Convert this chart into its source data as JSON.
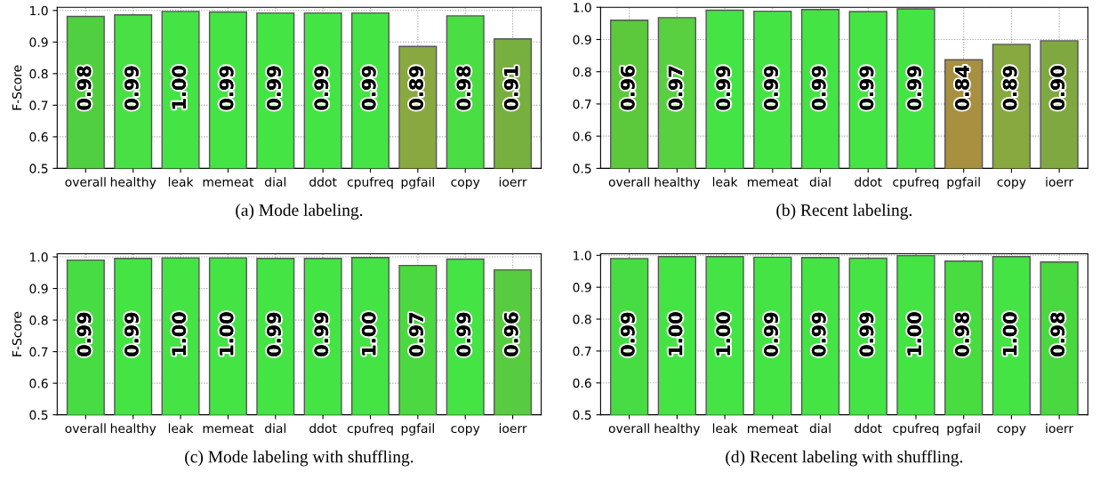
{
  "chart_data": [
    {
      "type": "bar",
      "ylabel": "F-Score",
      "annotations": [
        "(a) Mode labeling."
      ],
      "categories": [
        "overall",
        "healthy",
        "leak",
        "memeat",
        "dial",
        "ddot",
        "cpufreq",
        "pgfail",
        "copy",
        "ioerr"
      ],
      "values": [
        0.981,
        0.986,
        0.997,
        0.995,
        0.992,
        0.992,
        0.992,
        0.886,
        0.983,
        0.91
      ],
      "value_labels": [
        "0.98",
        "0.99",
        "1.00",
        "0.99",
        "0.99",
        "0.99",
        "0.99",
        "0.89",
        "0.98",
        "0.91"
      ],
      "colors": [
        "#50d040",
        "#48e044",
        "#44e444",
        "#44e444",
        "#44e444",
        "#44e444",
        "#44e444",
        "#8aa840",
        "#4ade44",
        "#78b040"
      ],
      "ylim": [
        0.5,
        1.01
      ],
      "yticks": [
        {
          "value": 0.5,
          "label": "0.5"
        },
        {
          "value": 0.6,
          "label": "0.6"
        },
        {
          "value": 0.7,
          "label": "0.7"
        },
        {
          "value": 0.8,
          "label": "0.8"
        },
        {
          "value": 0.9,
          "label": "0.9"
        },
        {
          "value": 1.0,
          "label": "1.0"
        }
      ],
      "grid": true
    },
    {
      "type": "bar",
      "annotations": [
        "(b) Recent labeling."
      ],
      "categories": [
        "overall",
        "healthy",
        "leak",
        "memeat",
        "dial",
        "ddot",
        "cpufreq",
        "pgfail",
        "copy",
        "ioerr"
      ],
      "values": [
        0.96,
        0.968,
        0.991,
        0.988,
        0.993,
        0.987,
        0.995,
        0.837,
        0.885,
        0.896
      ],
      "value_labels": [
        "0.96",
        "0.97",
        "0.99",
        "0.99",
        "0.99",
        "0.99",
        "0.99",
        "0.84",
        "0.89",
        "0.90"
      ],
      "colors": [
        "#5cc83c",
        "#58d040",
        "#44e444",
        "#44e444",
        "#44e444",
        "#44e444",
        "#44e444",
        "#a89040",
        "#88a840",
        "#80a840"
      ],
      "ylim": [
        0.5,
        1.0
      ],
      "yticks": [
        {
          "value": 0.5,
          "label": "0.5"
        },
        {
          "value": 0.6,
          "label": "0.6"
        },
        {
          "value": 0.7,
          "label": "0.7"
        },
        {
          "value": 0.8,
          "label": "0.8"
        },
        {
          "value": 0.9,
          "label": "0.9"
        },
        {
          "value": 1.0,
          "label": "1.0"
        }
      ],
      "grid": true
    },
    {
      "type": "bar",
      "ylabel": "F-Score",
      "annotations": [
        "(c) Mode labeling with shuffling."
      ],
      "categories": [
        "overall",
        "healthy",
        "leak",
        "memeat",
        "dial",
        "ddot",
        "cpufreq",
        "pgfail",
        "copy",
        "ioerr"
      ],
      "values": [
        0.99,
        0.995,
        0.997,
        0.997,
        0.995,
        0.995,
        0.998,
        0.973,
        0.993,
        0.959
      ],
      "value_labels": [
        "0.99",
        "0.99",
        "1.00",
        "1.00",
        "0.99",
        "0.99",
        "1.00",
        "0.97",
        "0.99",
        "0.96"
      ],
      "colors": [
        "#48dc44",
        "#44e444",
        "#44e444",
        "#44e444",
        "#44e444",
        "#44e444",
        "#44e444",
        "#4cd840",
        "#44e444",
        "#58cc40"
      ],
      "ylim": [
        0.5,
        1.01
      ],
      "yticks": [
        {
          "value": 0.5,
          "label": "0.5"
        },
        {
          "value": 0.6,
          "label": "0.6"
        },
        {
          "value": 0.7,
          "label": "0.7"
        },
        {
          "value": 0.8,
          "label": "0.8"
        },
        {
          "value": 0.9,
          "label": "0.9"
        },
        {
          "value": 1.0,
          "label": "1.0"
        }
      ],
      "grid": true
    },
    {
      "type": "bar",
      "annotations": [
        "(d) Recent labeling with shuffling."
      ],
      "categories": [
        "overall",
        "healthy",
        "leak",
        "memeat",
        "dial",
        "ddot",
        "cpufreq",
        "pgfail",
        "copy",
        "ioerr"
      ],
      "values": [
        0.99,
        0.996,
        0.996,
        0.994,
        0.993,
        0.991,
        0.999,
        0.982,
        0.996,
        0.979
      ],
      "value_labels": [
        "0.99",
        "1.00",
        "1.00",
        "0.99",
        "0.99",
        "0.99",
        "1.00",
        "0.98",
        "1.00",
        "0.98"
      ],
      "colors": [
        "#48dc44",
        "#44e444",
        "#44e444",
        "#44e444",
        "#44e444",
        "#44e444",
        "#44e444",
        "#48dc40",
        "#44e444",
        "#4ad840"
      ],
      "ylim": [
        0.5,
        1.005
      ],
      "yticks": [
        {
          "value": 0.5,
          "label": "0.5"
        },
        {
          "value": 0.6,
          "label": "0.6"
        },
        {
          "value": 0.7,
          "label": "0.7"
        },
        {
          "value": 0.8,
          "label": "0.8"
        },
        {
          "value": 0.9,
          "label": "0.9"
        },
        {
          "value": 1.0,
          "label": "1.0"
        }
      ],
      "grid": true
    }
  ]
}
